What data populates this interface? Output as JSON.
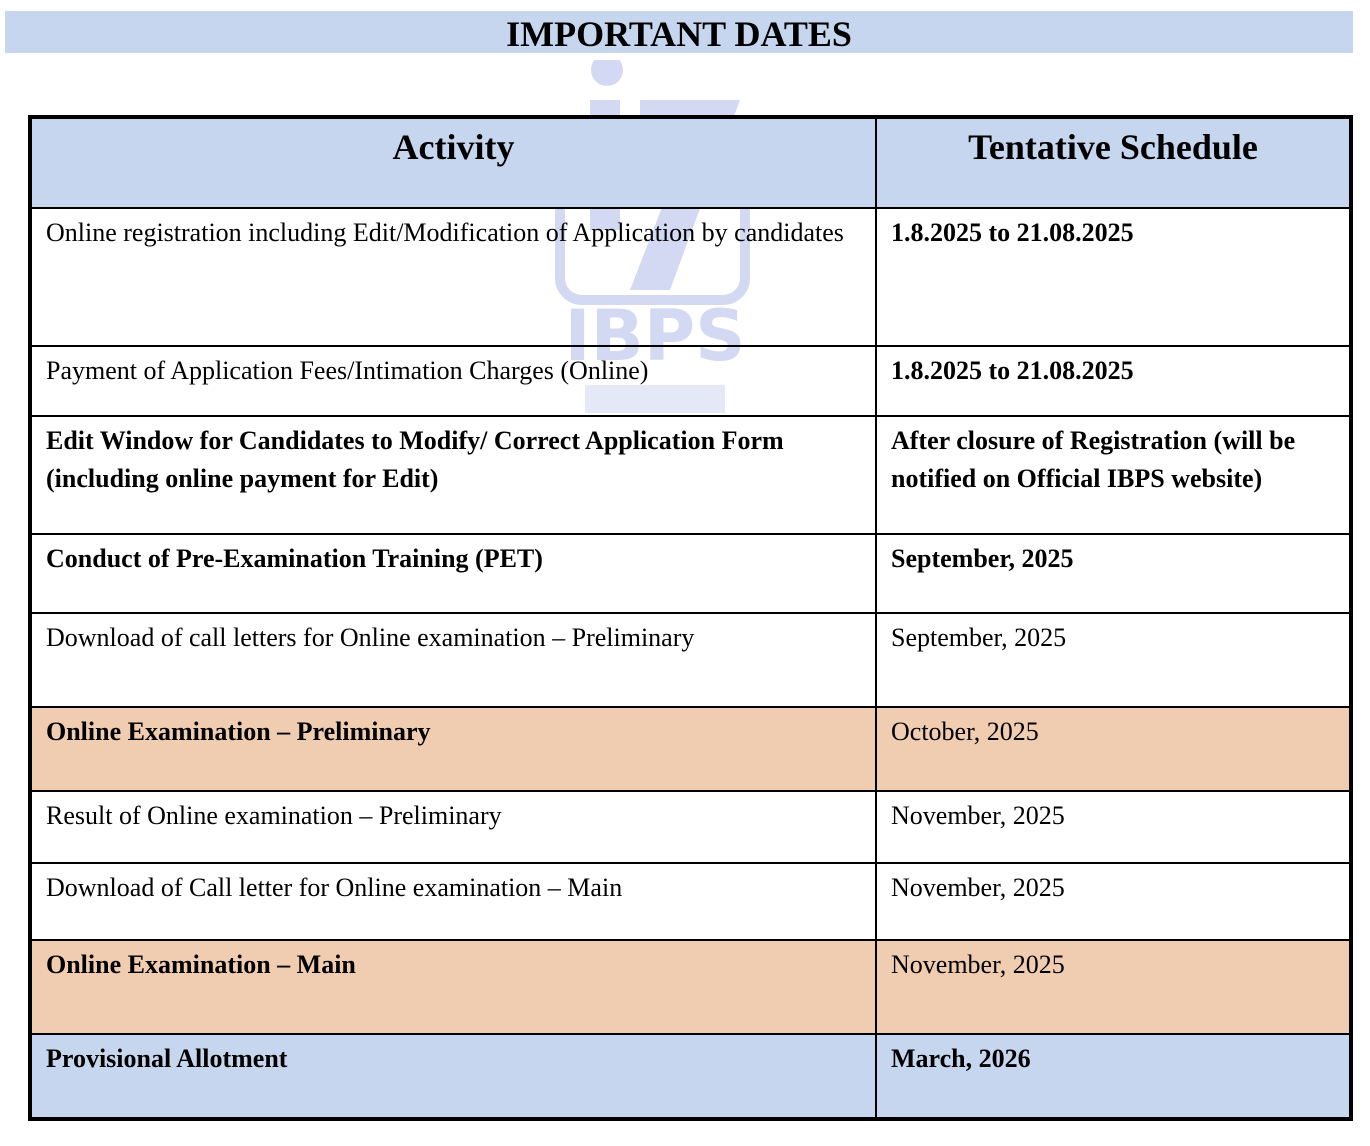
{
  "title": "IMPORTANT DATES",
  "watermark": {
    "text": "IBPS",
    "color": "#3a55c8"
  },
  "colors": {
    "header_bg": "#c5d6ee",
    "highlight_bg": "#f0cdb0"
  },
  "table": {
    "headers": [
      "Activity",
      "Tentative Schedule"
    ],
    "rows": [
      {
        "activity": "Online registration including Edit/Modification of Application by candidates",
        "schedule": "1.8.2025 to 21.08.2025",
        "activity_bold": false,
        "schedule_bold": true,
        "highlight": "none"
      },
      {
        "activity": "Payment of Application Fees/Intimation Charges (Online)",
        "schedule": "1.8.2025 to 21.08.2025",
        "activity_bold": false,
        "schedule_bold": true,
        "highlight": "none"
      },
      {
        "activity": "Edit Window for Candidates to Modify/ Correct Application Form (including online payment for Edit)",
        "schedule": "After closure of Registration (will be notified on Official IBPS website)",
        "activity_bold": true,
        "schedule_bold": true,
        "highlight": "none"
      },
      {
        "activity": "Conduct of Pre-Examination Training (PET)",
        "schedule": "September, 2025",
        "activity_bold": true,
        "schedule_bold": true,
        "highlight": "none"
      },
      {
        "activity": "Download of call letters for Online examination – Preliminary",
        "schedule": "September, 2025",
        "activity_bold": false,
        "schedule_bold": false,
        "highlight": "none"
      },
      {
        "activity": "Online Examination – Preliminary",
        "schedule": "October, 2025",
        "activity_bold": true,
        "schedule_bold": false,
        "highlight": "peach"
      },
      {
        "activity": "Result of Online examination – Preliminary",
        "schedule": "November, 2025",
        "activity_bold": false,
        "schedule_bold": false,
        "highlight": "none"
      },
      {
        "activity": "Download of Call letter for Online examination – Main",
        "schedule": "November, 2025",
        "activity_bold": false,
        "schedule_bold": false,
        "highlight": "none"
      },
      {
        "activity": "Online Examination – Main",
        "schedule": "November, 2025",
        "activity_bold": true,
        "schedule_bold": false,
        "highlight": "peach"
      },
      {
        "activity": "Provisional Allotment",
        "schedule": "March, 2026",
        "activity_bold": true,
        "schedule_bold": true,
        "highlight": "blue"
      }
    ]
  }
}
